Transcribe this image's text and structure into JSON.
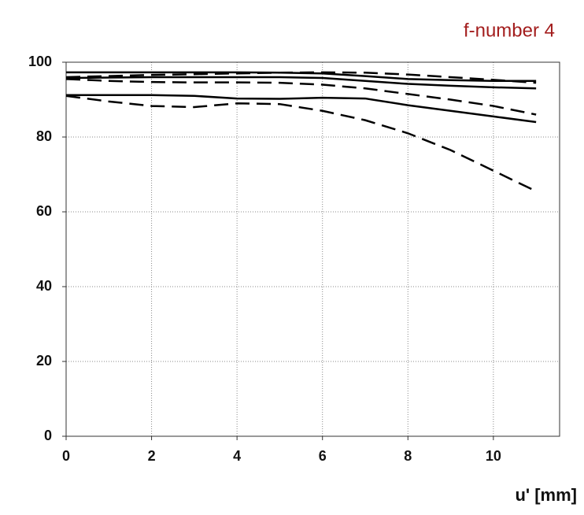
{
  "chart_data": {
    "type": "line",
    "title": "f-number 4",
    "x_label": "u' [mm]",
    "x": [
      0,
      1,
      2,
      3,
      4,
      5,
      6,
      7,
      8,
      9,
      10,
      11
    ],
    "series": [
      {
        "color": "#000000",
        "dashed": false,
        "values": [
          97.3,
          97.3,
          97.3,
          97.3,
          97.3,
          97.2,
          97.0,
          96.3,
          95.5,
          95.2,
          95.0,
          95.0
        ]
      },
      {
        "color": "#000000",
        "dashed": false,
        "values": [
          95.8,
          95.9,
          96.0,
          96.0,
          96.0,
          96.0,
          95.8,
          95.0,
          94.2,
          93.7,
          93.3,
          93.0
        ]
      },
      {
        "color": "#000000",
        "dashed": false,
        "values": [
          91.2,
          91.2,
          91.2,
          91.0,
          90.3,
          90.2,
          90.5,
          90.3,
          88.5,
          87.0,
          85.5,
          84.0
        ]
      },
      {
        "color": "#000000",
        "dashed": true,
        "values": [
          96.0,
          96.3,
          96.6,
          96.8,
          97.0,
          97.2,
          97.3,
          97.2,
          96.7,
          96.0,
          95.3,
          94.5
        ]
      },
      {
        "color": "#000000",
        "dashed": true,
        "values": [
          95.5,
          95.0,
          94.7,
          94.6,
          94.6,
          94.5,
          94.0,
          93.0,
          91.5,
          90.0,
          88.3,
          86.0
        ]
      },
      {
        "color": "#000000",
        "dashed": true,
        "values": [
          91.0,
          89.5,
          88.3,
          88.0,
          89.0,
          88.8,
          87.0,
          84.5,
          81.0,
          76.5,
          71.0,
          65.5
        ]
      }
    ],
    "xlim": [
      0,
      11.55
    ],
    "xticks": [
      0,
      2,
      4,
      6,
      8,
      10
    ],
    "ylim": [
      0,
      100
    ],
    "yticks": [
      0,
      20,
      40,
      60,
      80,
      100
    ],
    "grid": true,
    "title_color": "#a31d1d"
  }
}
